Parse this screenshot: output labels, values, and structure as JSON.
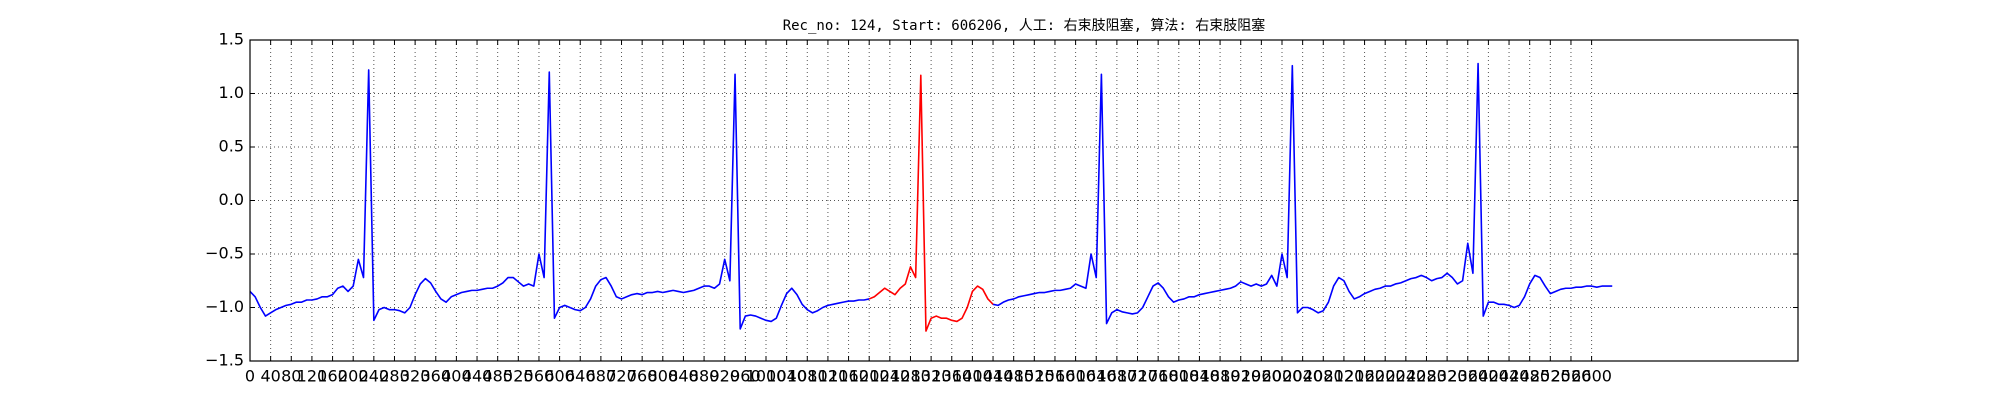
{
  "chart_data": {
    "type": "line",
    "title": "Rec_no: 124, Start: 606206, 人工: 右束肢阻塞, 算法: 右束肢阻塞",
    "x": [
      0,
      10,
      20,
      30,
      40,
      50,
      60,
      70,
      80,
      90,
      100,
      110,
      120,
      130,
      140,
      150,
      160,
      170,
      180,
      190,
      200,
      210,
      220,
      230,
      240,
      250,
      260,
      270,
      280,
      290,
      300,
      310,
      320,
      330,
      340,
      350,
      360,
      370,
      380,
      390,
      400,
      410,
      420,
      430,
      440,
      450,
      460,
      470,
      480,
      490,
      500,
      510,
      520,
      530,
      540,
      550,
      560,
      570,
      580,
      590,
      600,
      610,
      620,
      630,
      640,
      650,
      660,
      670,
      680,
      690,
      700,
      710,
      720,
      730,
      740,
      750,
      760,
      770,
      780,
      790,
      800,
      810,
      820,
      830,
      840,
      850,
      860,
      870,
      880,
      890,
      900,
      910,
      920,
      930,
      940,
      950,
      960,
      970,
      980,
      990,
      1000,
      1010,
      1020,
      1030,
      1040,
      1050,
      1060,
      1070,
      1080,
      1090,
      1100,
      1110,
      1120,
      1130,
      1140,
      1150,
      1160,
      1170,
      1180,
      1190,
      1200,
      1210,
      1220,
      1230,
      1240,
      1250,
      1260,
      1270,
      1280,
      1290,
      1300,
      1310,
      1320,
      1330,
      1340,
      1350,
      1360,
      1370,
      1380,
      1390,
      1400,
      1410,
      1420,
      1430,
      1440,
      1450,
      1460,
      1470,
      1480,
      1490,
      1500,
      1510,
      1520,
      1530,
      1540,
      1550,
      1560,
      1570,
      1580,
      1590,
      1600,
      1610,
      1620,
      1630,
      1640,
      1650,
      1660,
      1670,
      1680,
      1690,
      1700,
      1710,
      1720,
      1730,
      1740,
      1750,
      1760,
      1770,
      1780,
      1790,
      1800,
      1810,
      1820,
      1830,
      1840,
      1850,
      1860,
      1870,
      1880,
      1890,
      1900,
      1910,
      1920,
      1930,
      1940,
      1950,
      1960,
      1970,
      1980,
      1990,
      2000,
      2010,
      2020,
      2030,
      2040,
      2050,
      2060,
      2070,
      2080,
      2090,
      2100,
      2110,
      2120,
      2130,
      2140,
      2150,
      2160,
      2170,
      2180,
      2190,
      2200,
      2210,
      2220,
      2230,
      2240,
      2250,
      2260,
      2270,
      2280,
      2290,
      2300,
      2310,
      2320,
      2330,
      2340,
      2350,
      2360,
      2370,
      2380,
      2390,
      2400,
      2410,
      2420,
      2430,
      2440,
      2450,
      2460,
      2470,
      2480,
      2490,
      2500,
      2510,
      2520,
      2530,
      2540,
      2550,
      2560,
      2570,
      2580,
      2590,
      2600,
      2610,
      2620,
      2630,
      2640
    ],
    "series": [
      {
        "color": "#0000ff",
        "values": [
          -0.85,
          -0.9,
          -1.0,
          -1.08,
          -1.05,
          -1.02,
          -1.0,
          -0.98,
          -0.97,
          -0.95,
          -0.95,
          -0.93,
          -0.93,
          -0.92,
          -0.9,
          -0.9,
          -0.88,
          -0.82,
          -0.8,
          -0.85,
          -0.8,
          -0.55,
          -0.72,
          1.22,
          -1.12,
          -1.02,
          -1.0,
          -1.02,
          -1.02,
          -1.03,
          -1.05,
          -1.0,
          -0.88,
          -0.78,
          -0.73,
          -0.77,
          -0.85,
          -0.92,
          -0.95,
          -0.9,
          -0.88,
          -0.86,
          -0.85,
          -0.84,
          -0.84,
          -0.83,
          -0.82,
          -0.82,
          -0.8,
          -0.77,
          -0.72,
          -0.72,
          -0.76,
          -0.8,
          -0.78,
          -0.8,
          -0.5,
          -0.72,
          1.2,
          -1.1,
          -1.0,
          -0.98,
          -1.0,
          -1.02,
          -1.03,
          -1.0,
          -0.92,
          -0.8,
          -0.74,
          -0.72,
          -0.8,
          -0.9,
          -0.92,
          -0.9,
          -0.88,
          -0.87,
          -0.88,
          -0.86,
          -0.86,
          -0.85,
          -0.86,
          -0.85,
          -0.84,
          -0.85,
          -0.86,
          -0.85,
          -0.84,
          -0.82,
          -0.8,
          -0.8,
          -0.82,
          -0.78,
          -0.55,
          -0.75,
          1.18,
          -1.2,
          -1.08,
          -1.07,
          -1.08,
          -1.1,
          -1.12,
          -1.13,
          -1.1,
          -0.98,
          -0.87,
          -0.82,
          -0.88,
          -0.97,
          -1.02,
          -1.05,
          -1.03,
          -1.0,
          -0.98,
          -0.97,
          -0.96,
          -0.95,
          -0.94,
          -0.94,
          -0.93,
          -0.93,
          -0.92,
          null,
          null,
          null,
          null,
          null,
          null,
          null,
          null,
          null,
          null,
          null,
          null,
          null,
          null,
          null,
          null,
          null,
          null,
          null,
          null,
          null,
          null,
          null,
          -0.97,
          -0.98,
          -0.95,
          -0.93,
          -0.92,
          -0.9,
          -0.89,
          -0.88,
          -0.87,
          -0.86,
          -0.86,
          -0.85,
          -0.84,
          -0.84,
          -0.83,
          -0.82,
          -0.78,
          -0.8,
          -0.82,
          -0.5,
          -0.72,
          1.18,
          -1.15,
          -1.05,
          -1.02,
          -1.04,
          -1.05,
          -1.06,
          -1.05,
          -1.0,
          -0.9,
          -0.8,
          -0.77,
          -0.82,
          -0.9,
          -0.95,
          -0.93,
          -0.92,
          -0.9,
          -0.9,
          -0.88,
          -0.87,
          -0.86,
          -0.85,
          -0.84,
          -0.83,
          -0.82,
          -0.8,
          -0.76,
          -0.78,
          -0.8,
          -0.78,
          -0.8,
          -0.78,
          -0.7,
          -0.8,
          -0.5,
          -0.72,
          1.26,
          -1.05,
          -1.0,
          -1.0,
          -1.02,
          -1.05,
          -1.03,
          -0.95,
          -0.8,
          -0.72,
          -0.75,
          -0.85,
          -0.92,
          -0.9,
          -0.87,
          -0.85,
          -0.83,
          -0.82,
          -0.8,
          -0.8,
          -0.78,
          -0.77,
          -0.75,
          -0.73,
          -0.72,
          -0.7,
          -0.72,
          -0.75,
          -0.73,
          -0.72,
          -0.68,
          -0.72,
          -0.78,
          -0.75,
          -0.4,
          -0.68,
          1.28,
          -1.08,
          -0.95,
          -0.95,
          -0.97,
          -0.97,
          -0.98,
          -1.0,
          -0.98,
          -0.9,
          -0.78,
          -0.7,
          -0.72,
          -0.8,
          -0.87,
          -0.85,
          -0.83,
          -0.82,
          -0.82,
          -0.81,
          -0.81,
          -0.8,
          -0.8,
          -0.81,
          -0.8,
          -0.8,
          -0.8
        ]
      },
      {
        "color": "#ff0000",
        "values": [
          null,
          null,
          null,
          null,
          null,
          null,
          null,
          null,
          null,
          null,
          null,
          null,
          null,
          null,
          null,
          null,
          null,
          null,
          null,
          null,
          null,
          null,
          null,
          null,
          null,
          null,
          null,
          null,
          null,
          null,
          null,
          null,
          null,
          null,
          null,
          null,
          null,
          null,
          null,
          null,
          null,
          null,
          null,
          null,
          null,
          null,
          null,
          null,
          null,
          null,
          null,
          null,
          null,
          null,
          null,
          null,
          null,
          null,
          null,
          null,
          null,
          null,
          null,
          null,
          null,
          null,
          null,
          null,
          null,
          null,
          null,
          null,
          null,
          null,
          null,
          null,
          null,
          null,
          null,
          null,
          null,
          null,
          null,
          null,
          null,
          null,
          null,
          null,
          null,
          null,
          null,
          null,
          null,
          null,
          null,
          null,
          null,
          null,
          null,
          null,
          null,
          null,
          null,
          null,
          null,
          null,
          null,
          null,
          null,
          null,
          null,
          null,
          null,
          null,
          null,
          null,
          null,
          null,
          null,
          null,
          -0.92,
          -0.9,
          -0.86,
          -0.82,
          -0.85,
          -0.88,
          -0.82,
          -0.78,
          -0.62,
          -0.72,
          1.17,
          -1.22,
          -1.1,
          -1.08,
          -1.1,
          -1.1,
          -1.12,
          -1.13,
          -1.1,
          -1.0,
          -0.85,
          -0.8,
          -0.83,
          -0.92,
          -0.97,
          null,
          null,
          null,
          null,
          null,
          null,
          null,
          null,
          null,
          null,
          null,
          null,
          null,
          null,
          null,
          null,
          null,
          null,
          null,
          null,
          null,
          null,
          null,
          null,
          null,
          null,
          null,
          null,
          null,
          null,
          null,
          null,
          null,
          null,
          null,
          null,
          null,
          null,
          null,
          null,
          null,
          null,
          null,
          null,
          null,
          null,
          null,
          null,
          null,
          null,
          null,
          null,
          null,
          null,
          null,
          null,
          null,
          null,
          null,
          null,
          null,
          null,
          null,
          null,
          null,
          null,
          null,
          null,
          null,
          null,
          null,
          null,
          null,
          null,
          null,
          null,
          null,
          null,
          null,
          null,
          null,
          null,
          null,
          null,
          null,
          null,
          null,
          null,
          null,
          null,
          null,
          null,
          null,
          null,
          null,
          null,
          null,
          null,
          null,
          null,
          null,
          null,
          null,
          null,
          null,
          null,
          null,
          null,
          null,
          null,
          null,
          null,
          null,
          null,
          null,
          null,
          null,
          null,
          null,
          null
        ]
      }
    ],
    "xlim": [
      0,
      3000
    ],
    "xticks": [
      0,
      40,
      80,
      120,
      160,
      200,
      240,
      280,
      320,
      360,
      400,
      440,
      480,
      520,
      560,
      600,
      640,
      680,
      720,
      760,
      800,
      840,
      880,
      920,
      960,
      1000,
      1040,
      1080,
      1120,
      1160,
      1200,
      1240,
      1280,
      1320,
      1360,
      1400,
      1440,
      1480,
      1520,
      1560,
      1600,
      1640,
      1680,
      1720,
      1760,
      1800,
      1840,
      1880,
      1920,
      1960,
      2000,
      2040,
      2080,
      2120,
      2160,
      2200,
      2240,
      2280,
      2320,
      2360,
      2400,
      2440,
      2480,
      2520,
      2560,
      2600
    ],
    "ylim": [
      -1.5,
      1.5
    ],
    "yticks": [
      {
        "value": -1.5,
        "label": "−1.5"
      },
      {
        "value": -1,
        "label": "−1.0"
      },
      {
        "value": -0.5,
        "label": "−0.5"
      },
      {
        "value": 0,
        "label": "0.0"
      },
      0.5,
      {
        "value": 1,
        "label": "1.0"
      },
      1.5
    ],
    "grid": true
  }
}
